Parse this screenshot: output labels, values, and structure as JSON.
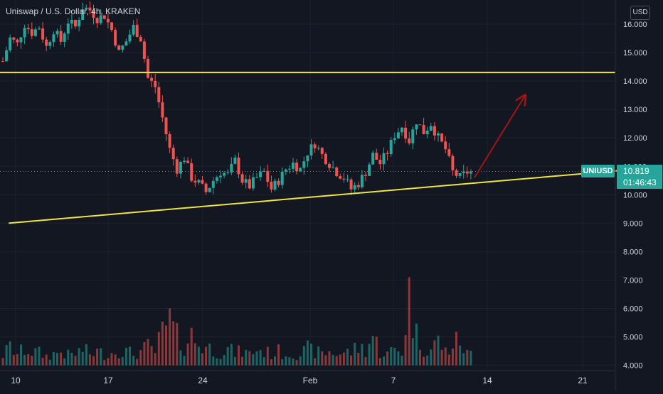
{
  "header": {
    "symbol_text": "Uniswap / U.S. Dollar, 4h, KRAKEN",
    "currency_label": "USD"
  },
  "price_badge": {
    "ticker": "UNIUSD",
    "price": "10.819",
    "countdown": "01:46:43"
  },
  "colors": {
    "background": "#131722",
    "up": "#26a69a",
    "down": "#ef5350",
    "trendline": "#f0e442",
    "arrow": "#a31515",
    "axis_text": "#d1d4dc"
  },
  "chart_data": {
    "type": "candlestick",
    "title": "Uniswap / U.S. Dollar, 4h, KRAKEN",
    "y_axis": {
      "side": "right",
      "ticks": [
        "16.000",
        "15.000",
        "14.000",
        "13.000",
        "12.000",
        "11.000",
        "10.000",
        "9.000",
        "8.000",
        "7.000",
        "6.000",
        "5.000",
        "4.000"
      ],
      "ylim": [
        3.95,
        16.9
      ]
    },
    "x_axis": {
      "ticks": [
        "10",
        "17",
        "24",
        "Feb",
        "7",
        "14",
        "21"
      ]
    },
    "price_path": [
      [
        0,
        14.7
      ],
      [
        1,
        15.5
      ],
      [
        2,
        15.3
      ],
      [
        3,
        16.0
      ],
      [
        4,
        15.7
      ],
      [
        5,
        15.9
      ],
      [
        6,
        15.2
      ],
      [
        7,
        15.8
      ],
      [
        8,
        15.4
      ],
      [
        9,
        16.1
      ],
      [
        10,
        15.9
      ],
      [
        11,
        16.6
      ],
      [
        12,
        16.5
      ],
      [
        13,
        16.2
      ],
      [
        14,
        16.3
      ],
      [
        15,
        15.8
      ],
      [
        16,
        15.0
      ],
      [
        17,
        15.4
      ],
      [
        18,
        15.9
      ],
      [
        19,
        15.5
      ],
      [
        20,
        14.1
      ],
      [
        21,
        13.8
      ],
      [
        22,
        12.7
      ],
      [
        23,
        11.6
      ],
      [
        24,
        10.9
      ],
      [
        25,
        11.3
      ],
      [
        26,
        10.6
      ],
      [
        27,
        10.4
      ],
      [
        28,
        10.1
      ],
      [
        29,
        10.5
      ],
      [
        30,
        10.8
      ],
      [
        31,
        10.7
      ],
      [
        32,
        11.2
      ],
      [
        33,
        10.5
      ],
      [
        34,
        10.3
      ],
      [
        35,
        10.6
      ],
      [
        36,
        10.8
      ],
      [
        37,
        10.2
      ],
      [
        38,
        10.5
      ],
      [
        39,
        10.9
      ],
      [
        40,
        11.1
      ],
      [
        41,
        10.9
      ],
      [
        42,
        11.5
      ],
      [
        43,
        11.8
      ],
      [
        44,
        11.4
      ],
      [
        45,
        11.1
      ],
      [
        46,
        10.8
      ],
      [
        47,
        10.6
      ],
      [
        48,
        10.2
      ],
      [
        49,
        10.4
      ],
      [
        50,
        10.8
      ],
      [
        51,
        11.4
      ],
      [
        52,
        11.1
      ],
      [
        53,
        11.5
      ],
      [
        54,
        12.1
      ],
      [
        55,
        12.4
      ],
      [
        56,
        11.9
      ],
      [
        57,
        12.6
      ],
      [
        58,
        12.2
      ],
      [
        59,
        12.5
      ],
      [
        60,
        12.0
      ],
      [
        61,
        11.6
      ],
      [
        62,
        10.8
      ],
      [
        63,
        10.6
      ],
      [
        64,
        10.8
      ]
    ],
    "volume_profile": [
      [
        0,
        4.45
      ],
      [
        1,
        4.8
      ],
      [
        2,
        4.5
      ],
      [
        3,
        4.7
      ],
      [
        4,
        4.6
      ],
      [
        5,
        4.55
      ],
      [
        6,
        4.4
      ],
      [
        7,
        4.5
      ],
      [
        8,
        4.6
      ],
      [
        9,
        4.45
      ],
      [
        10,
        4.5
      ],
      [
        11,
        4.7
      ],
      [
        12,
        4.5
      ],
      [
        13,
        4.6
      ],
      [
        14,
        4.5
      ],
      [
        15,
        4.55
      ],
      [
        16,
        4.7
      ],
      [
        17,
        4.6
      ],
      [
        18,
        4.5
      ],
      [
        19,
        4.6
      ],
      [
        20,
        4.8
      ],
      [
        21,
        4.6
      ],
      [
        22,
        5.4
      ],
      [
        23,
        5.9
      ],
      [
        24,
        5.2
      ],
      [
        25,
        4.9
      ],
      [
        26,
        5.3
      ],
      [
        27,
        4.9
      ],
      [
        28,
        4.8
      ],
      [
        29,
        4.7
      ],
      [
        30,
        4.6
      ],
      [
        31,
        4.7
      ],
      [
        32,
        4.55
      ],
      [
        33,
        4.6
      ],
      [
        34,
        4.5
      ],
      [
        35,
        4.7
      ],
      [
        36,
        4.6
      ],
      [
        37,
        4.5
      ],
      [
        38,
        4.6
      ],
      [
        39,
        4.5
      ],
      [
        40,
        4.55
      ],
      [
        41,
        4.5
      ],
      [
        42,
        4.7
      ],
      [
        43,
        4.6
      ],
      [
        44,
        4.5
      ],
      [
        45,
        4.6
      ],
      [
        46,
        4.5
      ],
      [
        47,
        4.55
      ],
      [
        48,
        4.6
      ],
      [
        49,
        4.8
      ],
      [
        50,
        4.7
      ],
      [
        51,
        5.3
      ],
      [
        52,
        4.6
      ],
      [
        53,
        4.5
      ],
      [
        54,
        4.7
      ],
      [
        55,
        4.6
      ],
      [
        56,
        7.1
      ],
      [
        57,
        5.3
      ],
      [
        58,
        4.8
      ],
      [
        59,
        4.7
      ],
      [
        60,
        5.1
      ],
      [
        61,
        4.6
      ],
      [
        62,
        4.9
      ],
      [
        63,
        5.1
      ],
      [
        64,
        4.5
      ]
    ],
    "horizontal_line": {
      "price": 14.3
    },
    "trend_line": {
      "from": [
        -9,
        9.0
      ],
      "to": [
        85,
        10.85
      ]
    },
    "arrow": {
      "from": [
        65,
        10.6
      ],
      "to": [
        72,
        13.5
      ]
    }
  }
}
